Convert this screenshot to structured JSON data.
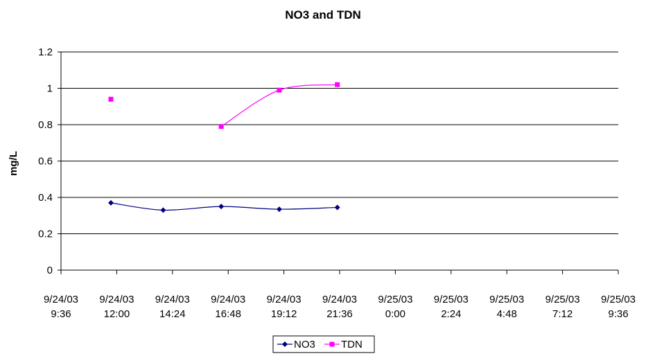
{
  "chart_data": {
    "type": "line",
    "title": "NO3 and TDN",
    "xlabel": "",
    "ylabel": "mg/L",
    "ylim": [
      0,
      1.2
    ],
    "y_ticks": [
      "0",
      "0.2",
      "0.4",
      "0.6",
      "0.8",
      "1",
      "1.2"
    ],
    "xlim": [
      "9/24/03 9:36",
      "9/25/03 9:36"
    ],
    "x_ticks": [
      [
        "9/24/03",
        "9:36"
      ],
      [
        "9/24/03",
        "12:00"
      ],
      [
        "9/24/03",
        "14:24"
      ],
      [
        "9/24/03",
        "16:48"
      ],
      [
        "9/24/03",
        "19:12"
      ],
      [
        "9/24/03",
        "21:36"
      ],
      [
        "9/25/03",
        "0:00"
      ],
      [
        "9/25/03",
        "2:24"
      ],
      [
        "9/25/03",
        "4:48"
      ],
      [
        "9/25/03",
        "7:12"
      ],
      [
        "9/25/03",
        "9:36"
      ]
    ],
    "grid": "horizontal",
    "legend_position": "bottom",
    "series": [
      {
        "name": "NO3",
        "color": "#000080",
        "marker": "diamond",
        "smoothed": true,
        "points": [
          {
            "x": "9/24/03 11:45",
            "y": 0.37
          },
          {
            "x": "9/24/03 14:00",
            "y": 0.33
          },
          {
            "x": "9/24/03 16:30",
            "y": 0.35
          },
          {
            "x": "9/24/03 19:00",
            "y": 0.335
          },
          {
            "x": "9/24/03 21:30",
            "y": 0.345
          }
        ]
      },
      {
        "name": "TDN",
        "color": "#FF00FF",
        "marker": "square",
        "smoothed": true,
        "points": [
          {
            "x": "9/24/03 11:45",
            "y": 0.94
          },
          {
            "x": "9/24/03 16:30",
            "y": 0.79
          },
          {
            "x": "9/24/03 19:00",
            "y": 0.99
          },
          {
            "x": "9/24/03 21:30",
            "y": 1.02
          }
        ],
        "line_starts_at_index": 1
      }
    ]
  }
}
